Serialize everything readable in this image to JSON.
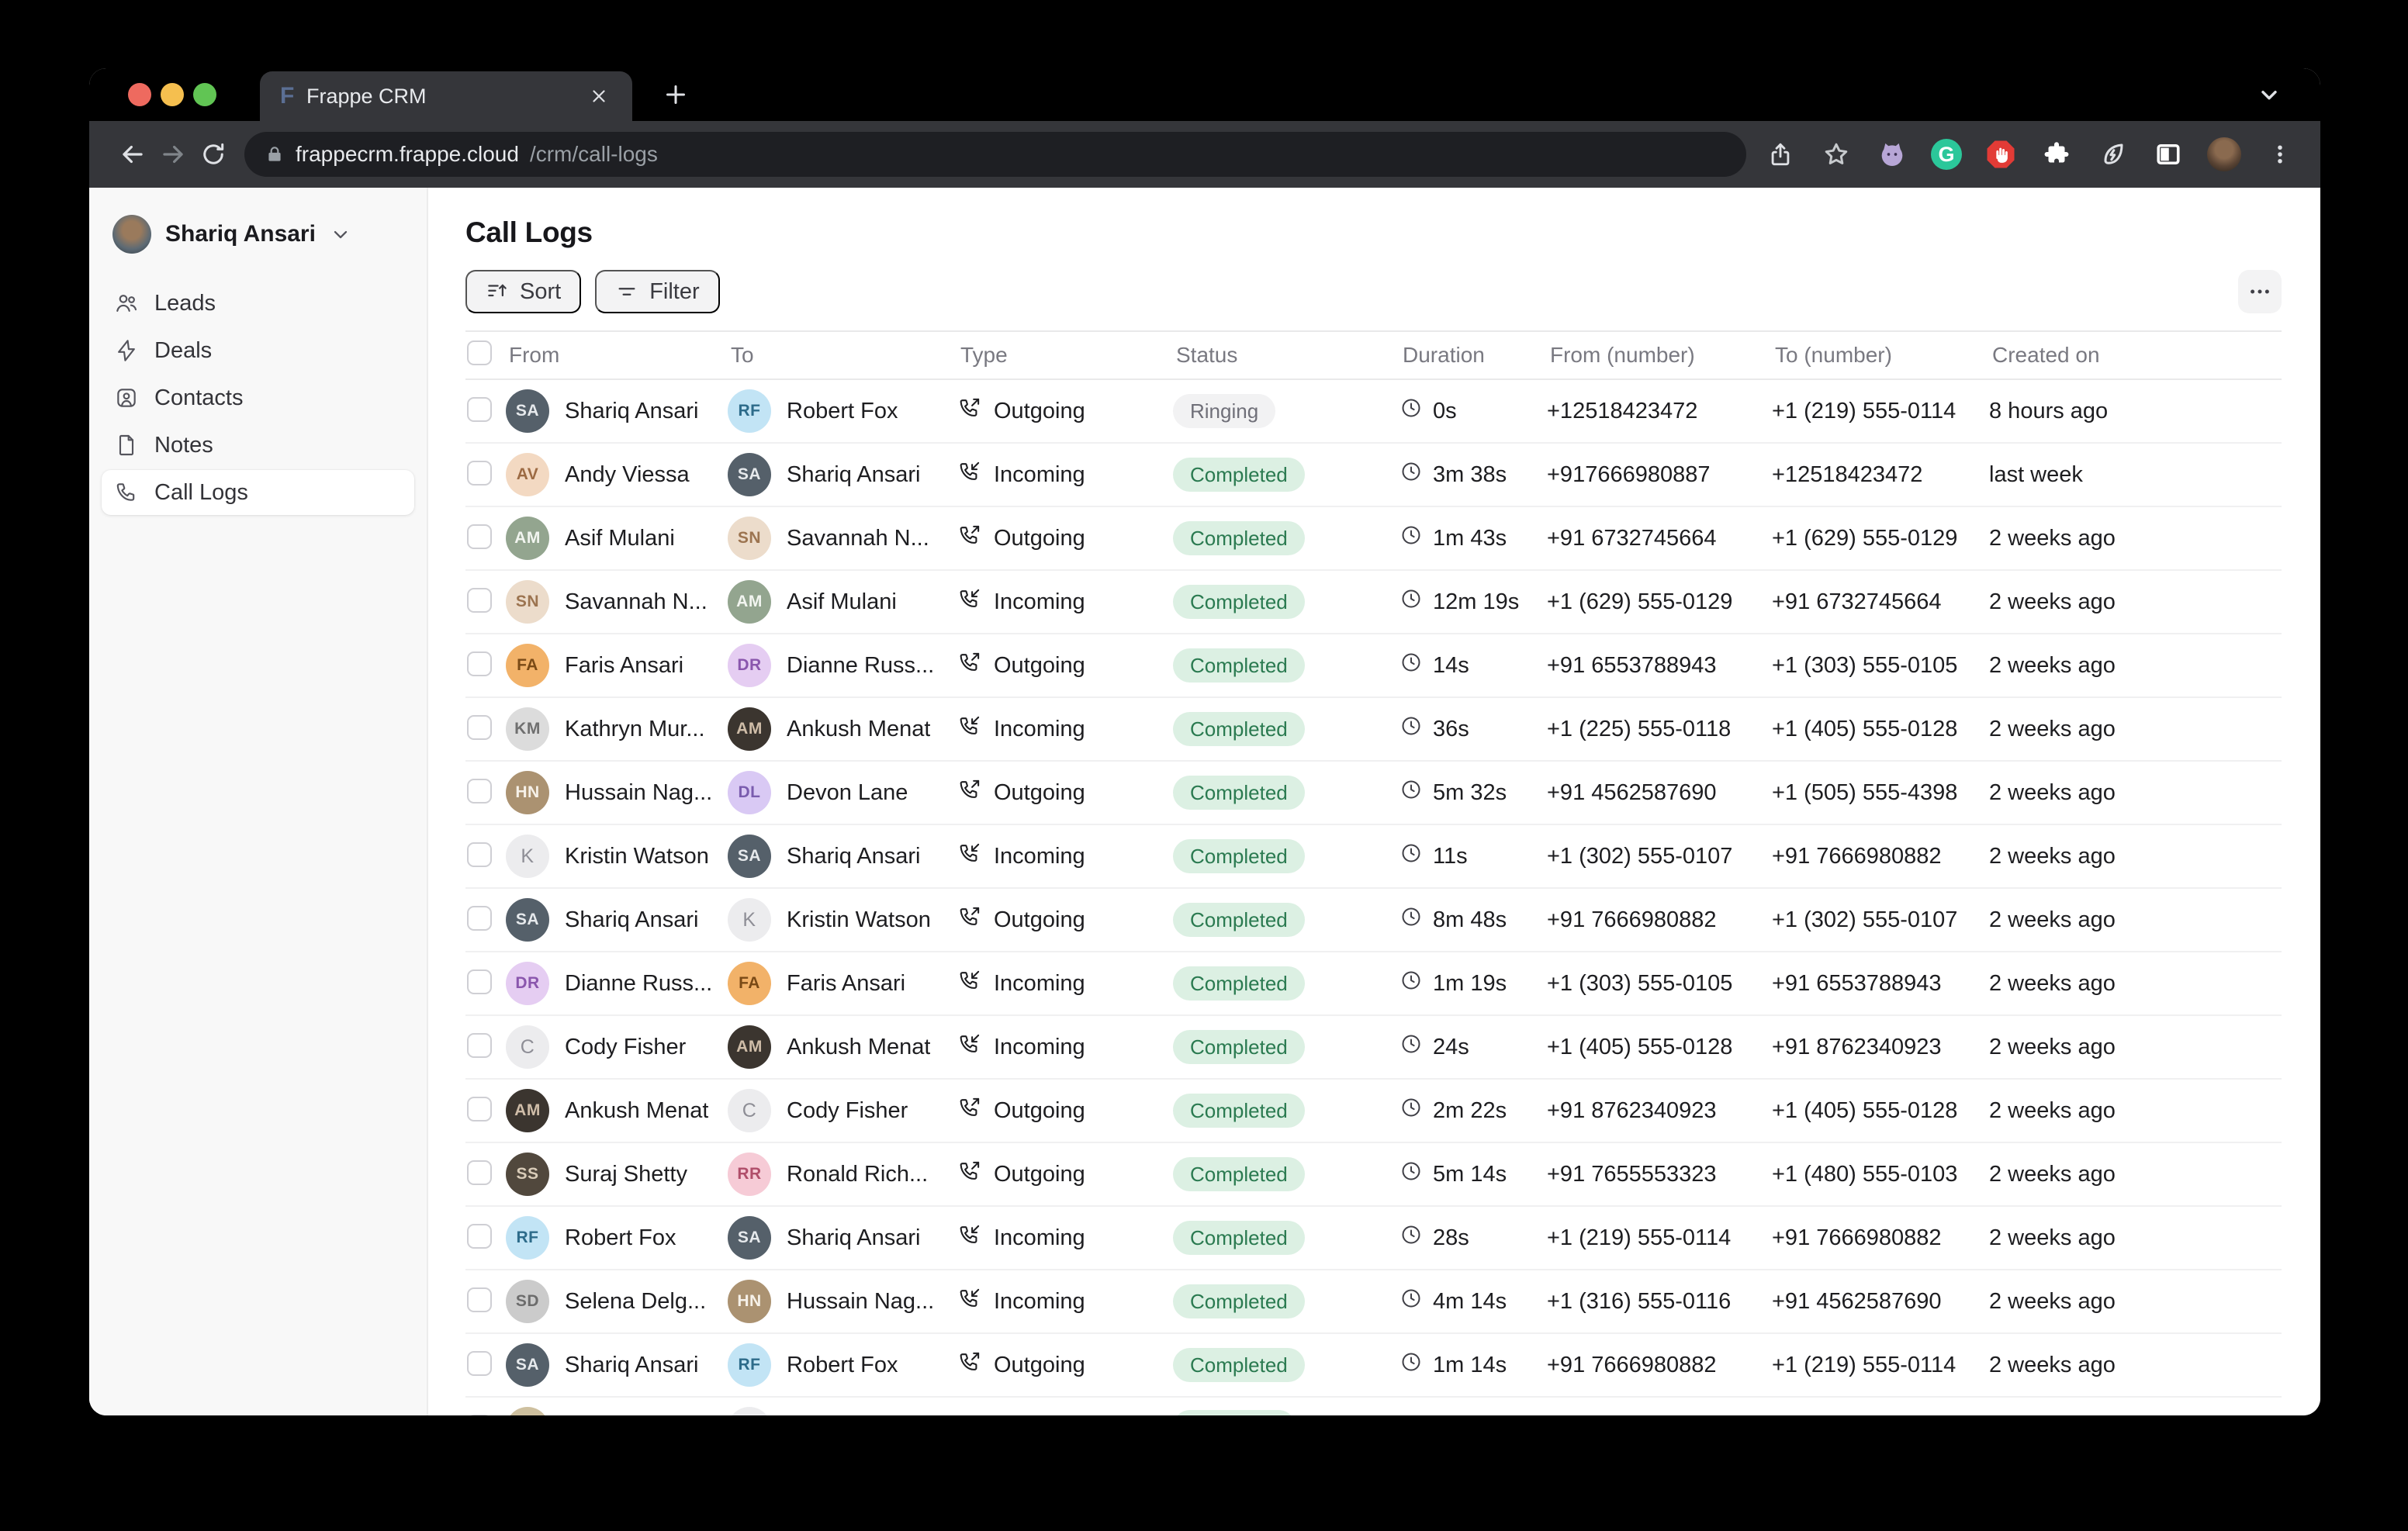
{
  "browser": {
    "tab": {
      "title": "Frappe CRM",
      "favicon_letter": "F"
    },
    "url": {
      "host": "frappecrm.frappe.cloud",
      "path": "/crm/call-logs"
    },
    "grammarly_letter": "G"
  },
  "sidebar": {
    "user": {
      "name": "Shariq Ansari"
    },
    "items": [
      {
        "label": "Leads",
        "active": false
      },
      {
        "label": "Deals",
        "active": false
      },
      {
        "label": "Contacts",
        "active": false
      },
      {
        "label": "Notes",
        "active": false
      },
      {
        "label": "Call Logs",
        "active": true
      }
    ]
  },
  "page": {
    "title": "Call Logs",
    "sort_label": "Sort",
    "filter_label": "Filter"
  },
  "table": {
    "columns": [
      "From",
      "To",
      "Type",
      "Status",
      "Duration",
      "From (number)",
      "To (number)",
      "Created on"
    ],
    "rows": [
      {
        "from": {
          "name": "Shariq Ansari",
          "initials": "SA",
          "bg": "#55606a",
          "fg": "#e6e9ec"
        },
        "to": {
          "name": "Robert Fox",
          "initials": "RF",
          "bg": "#c2e4f5",
          "fg": "#2d6b8a"
        },
        "type": "Outgoing",
        "status": {
          "label": "Ringing",
          "style": "gray"
        },
        "duration": "0s",
        "from_number": "+12518423472",
        "to_number": "+1 (219) 555-0114",
        "created": "8 hours ago"
      },
      {
        "from": {
          "name": "Andy Viessa",
          "initials": "AV",
          "bg": "#f3d9c2",
          "fg": "#9c6a43"
        },
        "to": {
          "name": "Shariq Ansari",
          "initials": "SA",
          "bg": "#55606a",
          "fg": "#e6e9ec"
        },
        "type": "Incoming",
        "status": {
          "label": "Completed",
          "style": "green"
        },
        "duration": "3m 38s",
        "from_number": "+917666980887",
        "to_number": "+12518423472",
        "created": "last week"
      },
      {
        "from": {
          "name": "Asif Mulani",
          "initials": "AM",
          "bg": "#93a58f",
          "fg": "#f2f5f0"
        },
        "to": {
          "name": "Savannah N...",
          "initials": "SN",
          "bg": "#ecdccb",
          "fg": "#9c7450"
        },
        "type": "Outgoing",
        "status": {
          "label": "Completed",
          "style": "green"
        },
        "duration": "1m 43s",
        "from_number": "+91 6732745664",
        "to_number": "+1 (629) 555-0129",
        "created": "2 weeks ago"
      },
      {
        "from": {
          "name": "Savannah N...",
          "initials": "SN",
          "bg": "#ecdccb",
          "fg": "#9c7450"
        },
        "to": {
          "name": "Asif Mulani",
          "initials": "AM",
          "bg": "#93a58f",
          "fg": "#f2f5f0"
        },
        "type": "Incoming",
        "status": {
          "label": "Completed",
          "style": "green"
        },
        "duration": "12m 19s",
        "from_number": "+1 (629) 555-0129",
        "to_number": "+91 6732745664",
        "created": "2 weeks ago"
      },
      {
        "from": {
          "name": "Faris Ansari",
          "initials": "FA",
          "bg": "#f2b269",
          "fg": "#7a4a16"
        },
        "to": {
          "name": "Dianne Russ...",
          "initials": "DR",
          "bg": "#e5cdf2",
          "fg": "#8a56ad"
        },
        "type": "Outgoing",
        "status": {
          "label": "Completed",
          "style": "green"
        },
        "duration": "14s",
        "from_number": "+91 6553788943",
        "to_number": "+1 (303) 555-0105",
        "created": "2 weeks ago"
      },
      {
        "from": {
          "name": "Kathryn Mur...",
          "initials": "KM",
          "bg": "#dcdcdc",
          "fg": "#6f6f6f"
        },
        "to": {
          "name": "Ankush Menat",
          "initials": "AM",
          "bg": "#3b352f",
          "fg": "#cfbda8"
        },
        "type": "Incoming",
        "status": {
          "label": "Completed",
          "style": "green"
        },
        "duration": "36s",
        "from_number": "+1 (225) 555-0118",
        "to_number": "+1 (405) 555-0128",
        "created": "2 weeks ago"
      },
      {
        "from": {
          "name": "Hussain Nag...",
          "initials": "HN",
          "bg": "#ab9271",
          "fg": "#f6f1e9"
        },
        "to": {
          "name": "Devon Lane",
          "initials": "DL",
          "bg": "#d9c9f4",
          "fg": "#7a5cae"
        },
        "type": "Outgoing",
        "status": {
          "label": "Completed",
          "style": "green"
        },
        "duration": "5m 32s",
        "from_number": "+91 4562587690",
        "to_number": "+1 (505) 555-4398",
        "created": "2 weeks ago"
      },
      {
        "from": {
          "name": "Kristin Watson",
          "initials": "K",
          "letter": true
        },
        "to": {
          "name": "Shariq Ansari",
          "initials": "SA",
          "bg": "#55606a",
          "fg": "#e6e9ec"
        },
        "type": "Incoming",
        "status": {
          "label": "Completed",
          "style": "green"
        },
        "duration": "11s",
        "from_number": "+1 (302) 555-0107",
        "to_number": "+91 7666980882",
        "created": "2 weeks ago"
      },
      {
        "from": {
          "name": "Shariq Ansari",
          "initials": "SA",
          "bg": "#55606a",
          "fg": "#e6e9ec"
        },
        "to": {
          "name": "Kristin Watson",
          "initials": "K",
          "letter": true
        },
        "type": "Outgoing",
        "status": {
          "label": "Completed",
          "style": "green"
        },
        "duration": "8m 48s",
        "from_number": "+91 7666980882",
        "to_number": "+1 (302) 555-0107",
        "created": "2 weeks ago"
      },
      {
        "from": {
          "name": "Dianne Russ...",
          "initials": "DR",
          "bg": "#e5cdf2",
          "fg": "#8a56ad"
        },
        "to": {
          "name": "Faris Ansari",
          "initials": "FA",
          "bg": "#f2b269",
          "fg": "#7a4a16"
        },
        "type": "Incoming",
        "status": {
          "label": "Completed",
          "style": "green"
        },
        "duration": "1m 19s",
        "from_number": "+1 (303) 555-0105",
        "to_number": "+91 6553788943",
        "created": "2 weeks ago"
      },
      {
        "from": {
          "name": "Cody Fisher",
          "initials": "C",
          "letter": true
        },
        "to": {
          "name": "Ankush Menat",
          "initials": "AM",
          "bg": "#3b352f",
          "fg": "#cfbda8"
        },
        "type": "Incoming",
        "status": {
          "label": "Completed",
          "style": "green"
        },
        "duration": "24s",
        "from_number": "+1 (405) 555-0128",
        "to_number": "+91 8762340923",
        "created": "2 weeks ago"
      },
      {
        "from": {
          "name": "Ankush Menat",
          "initials": "AM",
          "bg": "#3b352f",
          "fg": "#cfbda8"
        },
        "to": {
          "name": "Cody Fisher",
          "initials": "C",
          "letter": true
        },
        "type": "Outgoing",
        "status": {
          "label": "Completed",
          "style": "green"
        },
        "duration": "2m 22s",
        "from_number": "+91 8762340923",
        "to_number": "+1 (405) 555-0128",
        "created": "2 weeks ago"
      },
      {
        "from": {
          "name": "Suraj Shetty",
          "initials": "SS",
          "bg": "#51483d",
          "fg": "#d9ccb8"
        },
        "to": {
          "name": "Ronald Rich...",
          "initials": "RR",
          "bg": "#f6cbd6",
          "fg": "#b04e6a"
        },
        "type": "Outgoing",
        "status": {
          "label": "Completed",
          "style": "green"
        },
        "duration": "5m 14s",
        "from_number": "+91 7655553323",
        "to_number": "+1 (480) 555-0103",
        "created": "2 weeks ago"
      },
      {
        "from": {
          "name": "Robert Fox",
          "initials": "RF",
          "bg": "#c2e4f5",
          "fg": "#2d6b8a"
        },
        "to": {
          "name": "Shariq Ansari",
          "initials": "SA",
          "bg": "#55606a",
          "fg": "#e6e9ec"
        },
        "type": "Incoming",
        "status": {
          "label": "Completed",
          "style": "green"
        },
        "duration": "28s",
        "from_number": "+1 (219) 555-0114",
        "to_number": "+91 7666980882",
        "created": "2 weeks ago"
      },
      {
        "from": {
          "name": "Selena Delg...",
          "initials": "SD",
          "bg": "#cbcbcb",
          "fg": "#6c6c6c"
        },
        "to": {
          "name": "Hussain Nag...",
          "initials": "HN",
          "bg": "#ab9271",
          "fg": "#f6f1e9"
        },
        "type": "Incoming",
        "status": {
          "label": "Completed",
          "style": "green"
        },
        "duration": "4m 14s",
        "from_number": "+1 (316) 555-0116",
        "to_number": "+91 4562587690",
        "created": "2 weeks ago"
      },
      {
        "from": {
          "name": "Shariq Ansari",
          "initials": "SA",
          "bg": "#55606a",
          "fg": "#e6e9ec"
        },
        "to": {
          "name": "Robert Fox",
          "initials": "RF",
          "bg": "#c2e4f5",
          "fg": "#2d6b8a"
        },
        "type": "Outgoing",
        "status": {
          "label": "Completed",
          "style": "green"
        },
        "duration": "1m 14s",
        "from_number": "+91 7666980882",
        "to_number": "+1 (219) 555-0114",
        "created": "2 weeks ago"
      },
      {
        "from": {
          "name": "",
          "initials": "",
          "bg": "#cec09f",
          "fg": "#8a7a50"
        },
        "to": {
          "name": "",
          "initials": "",
          "letter": true
        },
        "type": "",
        "status": {
          "label": "",
          "style": "green"
        },
        "duration": "",
        "from_number": "",
        "to_number": "",
        "created": ""
      }
    ]
  },
  "colors": {
    "badge_green_bg": "#dcf0e3",
    "badge_green_text": "#2a7a50",
    "badge_gray_bg": "#f2f2f3",
    "badge_gray_text": "#6f6f78"
  }
}
